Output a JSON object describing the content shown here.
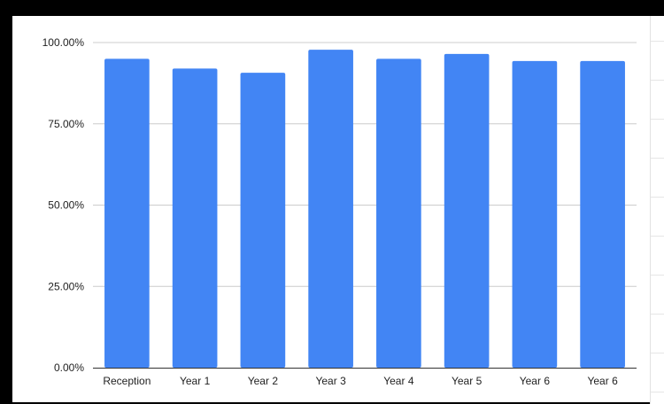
{
  "chart_data": {
    "type": "bar",
    "title": "",
    "xlabel": "",
    "ylabel": "",
    "categories": [
      "Reception",
      "Year 1",
      "Year 2",
      "Year 3",
      "Year 4",
      "Year 5",
      "Year 6",
      "Year 6"
    ],
    "series": [
      {
        "values": [
          95.0,
          92.0,
          90.7,
          97.8,
          95.0,
          96.5,
          94.3,
          94.3
        ],
        "color": "#4285f4"
      }
    ],
    "ylim": [
      0,
      100
    ],
    "yticks": [
      0,
      25,
      50,
      75,
      100
    ],
    "ytick_labels": [
      "0.00%",
      "25.00%",
      "50.00%",
      "75.00%",
      "100.00%"
    ],
    "grid": true,
    "legend": "none",
    "gridline_color": "#cccccc",
    "axis_color": "#333333"
  }
}
